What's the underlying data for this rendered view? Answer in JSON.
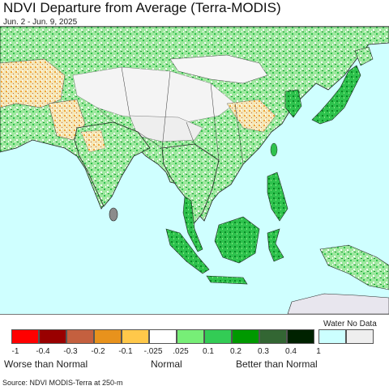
{
  "header": {
    "title": "NDVI Departure from Average (Terra-MODIS)",
    "subtitle": "Jun. 2 - Jun. 9, 2025"
  },
  "legend": {
    "water_no_data_label": "Water No Data",
    "swatches": [
      {
        "color": "#ff0000"
      },
      {
        "color": "#990000"
      },
      {
        "color": "#c4603f"
      },
      {
        "color": "#e8921c"
      },
      {
        "color": "#ffc84a"
      },
      {
        "color": "#ffffff"
      },
      {
        "color": "#77ee77"
      },
      {
        "color": "#33cc55"
      },
      {
        "color": "#009900"
      },
      {
        "color": "#336633"
      },
      {
        "color": "#002200"
      },
      {
        "color": "#ccffff",
        "group": "water"
      },
      {
        "color": "#eeeeee",
        "group": "nodata"
      }
    ],
    "ticks": [
      "-1",
      "-0.4",
      "-0.3",
      "-0.2",
      "-0.1",
      "-.025",
      ".025",
      "0.1",
      "0.2",
      "0.3",
      "0.4",
      "1"
    ],
    "categories": {
      "worse": "Worse than Normal",
      "normal": "Normal",
      "better": "Better than Normal"
    }
  },
  "footer": {
    "source": "Source: NDVI MODIS-Terra at 250-m"
  },
  "map_colors": {
    "ocean": "#cfffff",
    "land_base": "#f4f4f4",
    "no_data": "#e8e6ee",
    "border": "#222222"
  }
}
